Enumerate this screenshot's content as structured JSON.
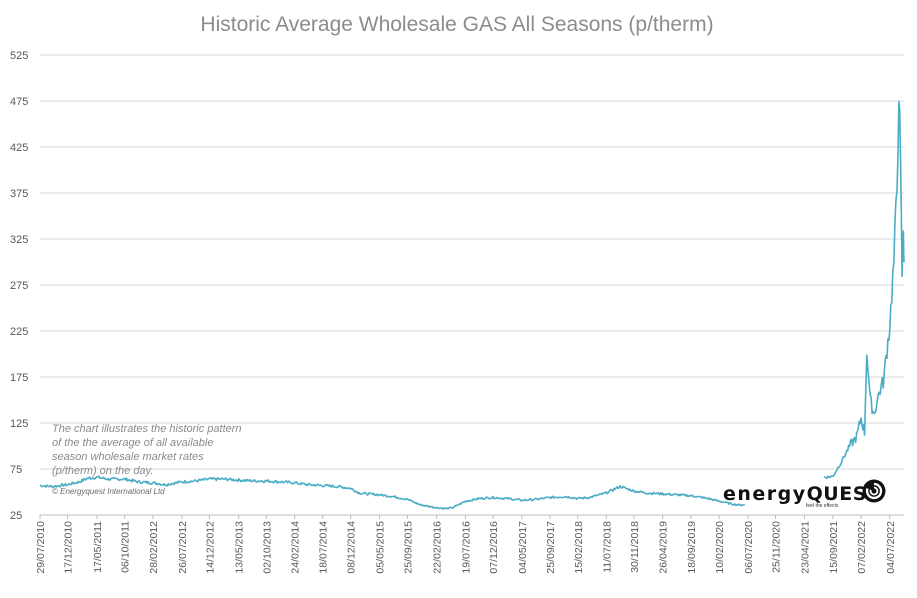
{
  "chart_data": {
    "type": "line",
    "title": "Historic Average Wholesale GAS All Seasons (p/therm)",
    "xlabel": "",
    "ylabel": "",
    "ylim": [
      25,
      525
    ],
    "yticks": [
      25,
      75,
      125,
      175,
      225,
      275,
      325,
      375,
      425,
      475,
      525
    ],
    "xticks": [
      "29/07/2010",
      "17/12/2010",
      "17/05/2011",
      "06/10/2011",
      "28/02/2012",
      "26/07/2012",
      "14/12/2012",
      "13/05/2013",
      "02/10/2013",
      "24/02/2014",
      "18/07/2014",
      "08/12/2014",
      "05/05/2015",
      "25/09/2015",
      "22/02/2016",
      "19/07/2016",
      "07/12/2016",
      "04/05/2017",
      "25/09/2017",
      "15/02/2018",
      "11/07/2018",
      "30/11/2018",
      "26/04/2019",
      "18/09/2019",
      "10/02/2020",
      "06/07/2020",
      "25/11/2020",
      "23/04/2021",
      "15/09/2021",
      "07/02/2022",
      "04/07/2022"
    ],
    "xrange": [
      "2010-07-29",
      "2022-09-15"
    ],
    "grid": true,
    "legend": "none",
    "line_color": "#4aacc5",
    "series": [
      {
        "points": [
          [
            "2010-07-29",
            57
          ],
          [
            "2010-10-01",
            56
          ],
          [
            "2010-12-17",
            58
          ],
          [
            "2011-02-15",
            61
          ],
          [
            "2011-04-01",
            65
          ],
          [
            "2011-05-17",
            66
          ],
          [
            "2011-07-15",
            64
          ],
          [
            "2011-10-06",
            64
          ],
          [
            "2011-12-15",
            61
          ],
          [
            "2012-02-28",
            60
          ],
          [
            "2012-05-01",
            58
          ],
          [
            "2012-07-26",
            61
          ],
          [
            "2012-10-01",
            62
          ],
          [
            "2012-12-14",
            64
          ],
          [
            "2013-03-01",
            64
          ],
          [
            "2013-05-13",
            63
          ],
          [
            "2013-08-01",
            62
          ],
          [
            "2013-10-02",
            62
          ],
          [
            "2013-12-15",
            61
          ],
          [
            "2014-02-24",
            60
          ],
          [
            "2014-05-01",
            58
          ],
          [
            "2014-07-18",
            57
          ],
          [
            "2014-10-01",
            56
          ],
          [
            "2014-12-08",
            54
          ],
          [
            "2015-01-20",
            49
          ],
          [
            "2015-03-01",
            48
          ],
          [
            "2015-05-05",
            47
          ],
          [
            "2015-07-15",
            45
          ],
          [
            "2015-09-25",
            42
          ],
          [
            "2015-12-01",
            36
          ],
          [
            "2016-02-22",
            33
          ],
          [
            "2016-04-10",
            32
          ],
          [
            "2016-05-15",
            33
          ],
          [
            "2016-07-19",
            40
          ],
          [
            "2016-10-01",
            43
          ],
          [
            "2016-12-07",
            44
          ],
          [
            "2017-02-15",
            43
          ],
          [
            "2017-05-04",
            41
          ],
          [
            "2017-07-15",
            42
          ],
          [
            "2017-09-25",
            44
          ],
          [
            "2017-12-15",
            45
          ],
          [
            "2018-02-15",
            43
          ],
          [
            "2018-04-15",
            44
          ],
          [
            "2018-07-11",
            49
          ],
          [
            "2018-09-20",
            56
          ],
          [
            "2018-11-30",
            51
          ],
          [
            "2019-02-01",
            49
          ],
          [
            "2019-04-26",
            48
          ],
          [
            "2019-07-01",
            47
          ],
          [
            "2019-09-18",
            46
          ],
          [
            "2019-12-15",
            43
          ],
          [
            "2020-02-10",
            40
          ],
          [
            "2020-04-15",
            37
          ],
          [
            "2020-05-20",
            36
          ],
          [
            "2020-06-20",
            36
          ],
          [
            "2021-08-01",
            66
          ],
          [
            "2021-09-15",
            67
          ],
          [
            "2021-11-01",
            84
          ],
          [
            "2021-12-10",
            100
          ],
          [
            "2022-01-15",
            110
          ],
          [
            "2022-02-07",
            130
          ],
          [
            "2022-02-25",
            115
          ],
          [
            "2022-03-08",
            205
          ],
          [
            "2022-03-25",
            150
          ],
          [
            "2022-04-15",
            135
          ],
          [
            "2022-05-10",
            158
          ],
          [
            "2022-06-01",
            170
          ],
          [
            "2022-06-20",
            205
          ],
          [
            "2022-07-04",
            232
          ],
          [
            "2022-07-25",
            300
          ],
          [
            "2022-08-10",
            380
          ],
          [
            "2022-08-20",
            494
          ],
          [
            "2022-08-28",
            400
          ],
          [
            "2022-09-05",
            288
          ],
          [
            "2022-09-12",
            335
          ],
          [
            "2022-09-15",
            300
          ]
        ]
      }
    ],
    "annotation": "The chart illustrates the historic pattern of the the average of all available season wholesale market rates (p/therm) on the day.",
    "annotation_lines": [
      "The chart illustrates the historic pattern",
      "of the the average of all available",
      "season wholesale market rates",
      "(p/therm) on the day."
    ],
    "copyright": "© Energyquest International Ltd",
    "logo": {
      "word1": "energy",
      "word2": "QUEST",
      "tagline": "feel the effects"
    }
  }
}
